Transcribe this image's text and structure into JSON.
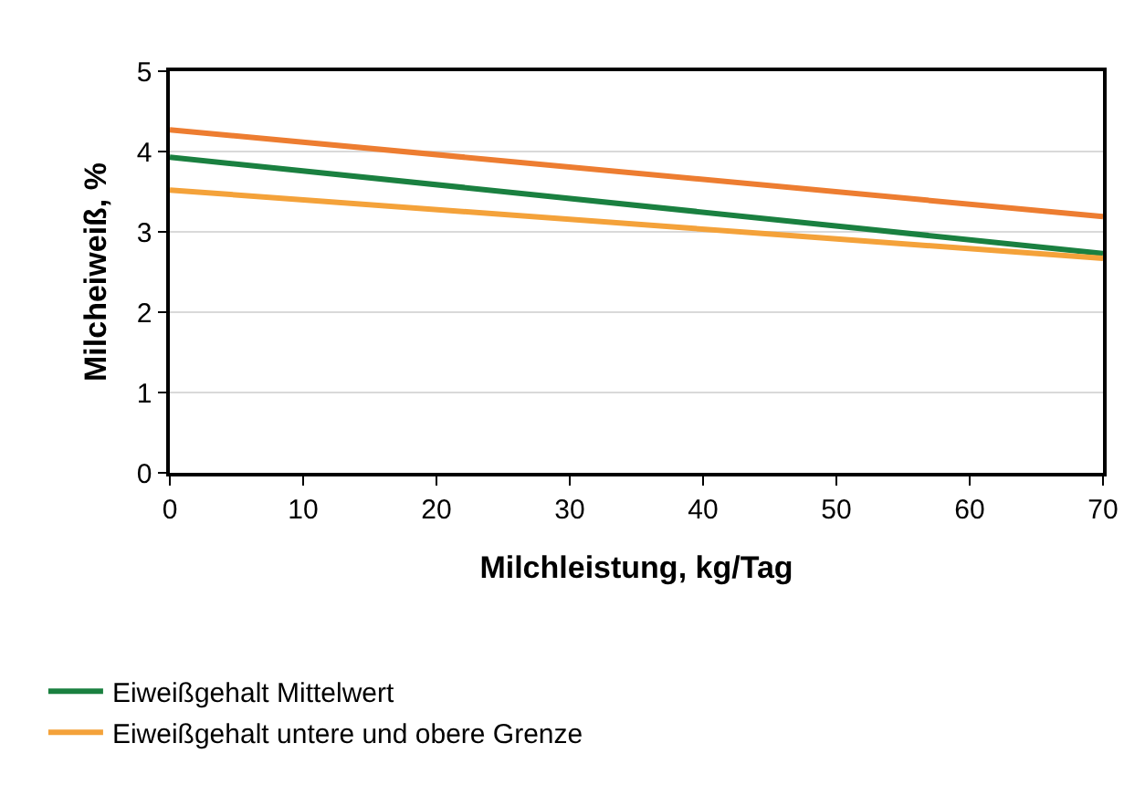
{
  "chart_data": {
    "type": "line",
    "xlabel": "Milchleistung, kg/Tag",
    "ylabel": "Milcheiweiß, %",
    "x": [
      0,
      70
    ],
    "series": [
      {
        "name": "Eiweißgehalt Mittelwert",
        "color": "#1a8040",
        "values": [
          3.93,
          2.73
        ]
      },
      {
        "name": "Eiweißgehalt untere und obere Grenze",
        "color": "#f4a23a",
        "values": [
          3.52,
          2.67
        ]
      },
      {
        "color": "#ed7d31",
        "values": [
          4.27,
          3.19
        ]
      }
    ],
    "xlim": [
      0,
      70
    ],
    "xticks": [
      0,
      10,
      20,
      30,
      40,
      50,
      60,
      70
    ],
    "ylim": [
      0,
      5
    ],
    "yticks": [
      0,
      1,
      2,
      3,
      4,
      5
    ],
    "grid": "y",
    "legend": "bottom left",
    "marker": "none",
    "line_style": "solid"
  }
}
